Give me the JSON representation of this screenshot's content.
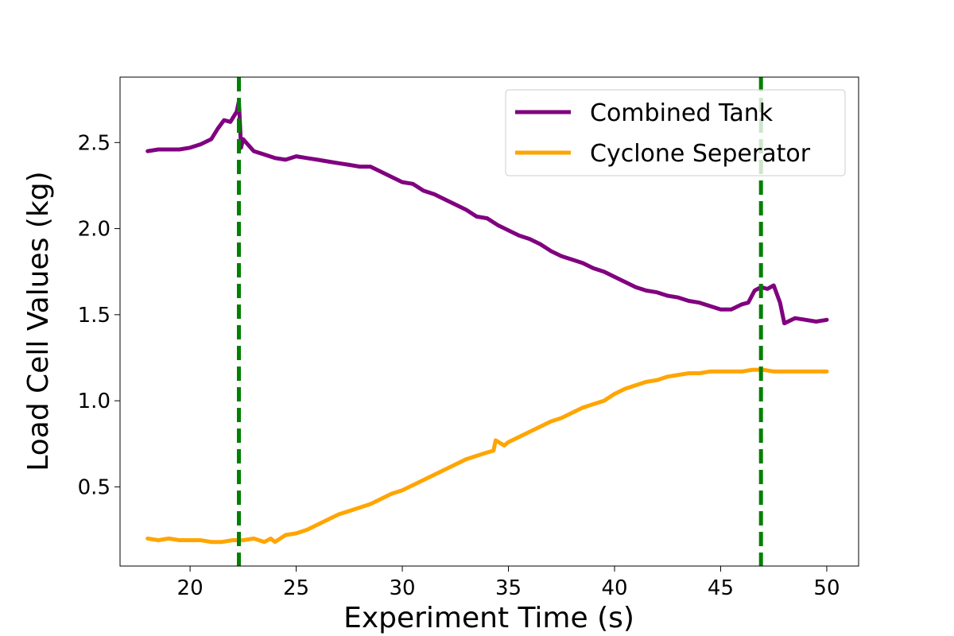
{
  "chart_data": {
    "type": "line",
    "title": "",
    "xlabel": "Experiment Time (s)",
    "ylabel": "Load Cell Values (kg)",
    "xlim": [
      16.7,
      51.5
    ],
    "ylim": [
      0.04,
      2.88
    ],
    "xticks": [
      20,
      25,
      30,
      35,
      40,
      45,
      50
    ],
    "yticks": [
      0.5,
      1.0,
      1.5,
      2.0,
      2.5
    ],
    "xtick_labels": [
      "20",
      "25",
      "30",
      "35",
      "40",
      "45",
      "50"
    ],
    "ytick_labels": [
      "0.5",
      "1.0",
      "1.5",
      "2.0",
      "2.5"
    ],
    "grid": false,
    "legend_position": "top-right",
    "series": [
      {
        "name": "Combined Tank",
        "color": "#800080",
        "x": [
          18.0,
          18.5,
          19.0,
          19.5,
          20.0,
          20.5,
          21.0,
          21.3,
          21.6,
          21.9,
          22.2,
          22.3,
          22.4,
          22.5,
          23.0,
          23.5,
          24.0,
          24.5,
          25.0,
          25.5,
          26.0,
          26.5,
          27.0,
          27.5,
          28.0,
          28.5,
          29.0,
          29.5,
          30.0,
          30.5,
          31.0,
          31.5,
          32.0,
          32.5,
          33.0,
          33.5,
          34.0,
          34.5,
          35.0,
          35.5,
          36.0,
          36.5,
          37.0,
          37.5,
          38.0,
          38.5,
          39.0,
          39.5,
          40.0,
          40.5,
          41.0,
          41.5,
          42.0,
          42.5,
          43.0,
          43.5,
          44.0,
          44.5,
          45.0,
          45.5,
          46.0,
          46.3,
          46.6,
          46.9,
          47.2,
          47.5,
          47.8,
          48.0,
          48.5,
          49.0,
          49.5,
          50.0
        ],
        "y": [
          2.45,
          2.46,
          2.46,
          2.46,
          2.47,
          2.49,
          2.52,
          2.58,
          2.63,
          2.62,
          2.68,
          2.74,
          2.47,
          2.52,
          2.45,
          2.43,
          2.41,
          2.4,
          2.42,
          2.41,
          2.4,
          2.39,
          2.38,
          2.37,
          2.36,
          2.36,
          2.33,
          2.3,
          2.27,
          2.26,
          2.22,
          2.2,
          2.17,
          2.14,
          2.11,
          2.07,
          2.06,
          2.02,
          1.99,
          1.96,
          1.94,
          1.91,
          1.87,
          1.84,
          1.82,
          1.8,
          1.77,
          1.75,
          1.72,
          1.69,
          1.66,
          1.64,
          1.63,
          1.61,
          1.6,
          1.58,
          1.57,
          1.55,
          1.53,
          1.53,
          1.56,
          1.57,
          1.64,
          1.66,
          1.65,
          1.67,
          1.57,
          1.45,
          1.48,
          1.47,
          1.46,
          1.47
        ]
      },
      {
        "name": "Cyclone Seperator",
        "color": "#ffa500",
        "x": [
          18.0,
          18.5,
          19.0,
          19.5,
          20.0,
          20.5,
          21.0,
          21.5,
          22.0,
          22.5,
          23.0,
          23.5,
          23.8,
          24.0,
          24.5,
          25.0,
          25.5,
          26.0,
          26.5,
          27.0,
          27.5,
          28.0,
          28.5,
          29.0,
          29.5,
          30.0,
          30.5,
          31.0,
          31.5,
          32.0,
          32.5,
          33.0,
          33.5,
          34.0,
          34.3,
          34.4,
          34.8,
          35.0,
          35.5,
          36.0,
          36.5,
          37.0,
          37.5,
          38.0,
          38.5,
          39.0,
          39.5,
          40.0,
          40.5,
          41.0,
          41.5,
          42.0,
          42.5,
          43.0,
          43.5,
          44.0,
          44.5,
          45.0,
          45.5,
          46.0,
          46.5,
          47.0,
          47.5,
          48.0,
          48.5,
          49.0,
          49.5,
          50.0
        ],
        "y": [
          0.2,
          0.19,
          0.2,
          0.19,
          0.19,
          0.19,
          0.18,
          0.18,
          0.19,
          0.19,
          0.2,
          0.18,
          0.2,
          0.18,
          0.22,
          0.23,
          0.25,
          0.28,
          0.31,
          0.34,
          0.36,
          0.38,
          0.4,
          0.43,
          0.46,
          0.48,
          0.51,
          0.54,
          0.57,
          0.6,
          0.63,
          0.66,
          0.68,
          0.7,
          0.71,
          0.77,
          0.74,
          0.76,
          0.79,
          0.82,
          0.85,
          0.88,
          0.9,
          0.93,
          0.96,
          0.98,
          1.0,
          1.04,
          1.07,
          1.09,
          1.11,
          1.12,
          1.14,
          1.15,
          1.16,
          1.16,
          1.17,
          1.17,
          1.17,
          1.17,
          1.18,
          1.18,
          1.17,
          1.17,
          1.17,
          1.17,
          1.17,
          1.17
        ]
      }
    ],
    "vertical_lines": [
      {
        "x": 22.3,
        "color": "#008000",
        "style": "dashed"
      },
      {
        "x": 46.9,
        "color": "#008000",
        "style": "dashed"
      }
    ]
  }
}
